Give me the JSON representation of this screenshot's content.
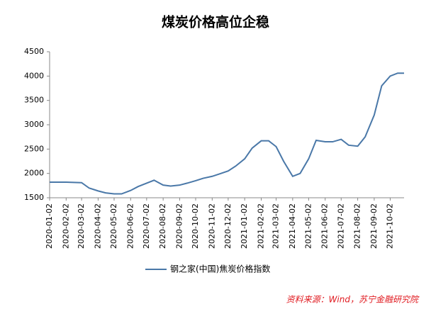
{
  "chart_data": {
    "type": "line",
    "title": "煤炭价格高位企稳",
    "x": [
      "2020-01-02",
      "2020-02-02",
      "2020-03-02",
      "2020-03-16",
      "2020-04-02",
      "2020-04-16",
      "2020-05-02",
      "2020-05-16",
      "2020-06-02",
      "2020-06-16",
      "2020-07-02",
      "2020-07-16",
      "2020-08-02",
      "2020-08-16",
      "2020-09-02",
      "2020-09-16",
      "2020-10-02",
      "2020-10-16",
      "2020-11-02",
      "2020-11-16",
      "2020-12-02",
      "2020-12-16",
      "2021-01-02",
      "2021-01-16",
      "2021-02-02",
      "2021-02-16",
      "2021-03-02",
      "2021-03-16",
      "2021-04-02",
      "2021-04-16",
      "2021-05-02",
      "2021-05-16",
      "2021-06-02",
      "2021-06-16",
      "2021-07-02",
      "2021-07-16",
      "2021-08-02",
      "2021-08-16",
      "2021-09-02",
      "2021-09-16",
      "2021-10-02",
      "2021-10-16",
      "2021-10-28"
    ],
    "series": [
      {
        "name": "钢之家(中国)焦炭价格指数",
        "color": "#4a78a8",
        "values": [
          1820,
          1820,
          1810,
          1700,
          1640,
          1600,
          1580,
          1580,
          1650,
          1730,
          1800,
          1860,
          1760,
          1740,
          1760,
          1800,
          1850,
          1900,
          1940,
          1990,
          2050,
          2150,
          2300,
          2520,
          2670,
          2670,
          2550,
          2250,
          1940,
          2000,
          2300,
          2680,
          2650,
          2650,
          2700,
          2580,
          2560,
          2750,
          3200,
          3800,
          4000,
          4060,
          4060
        ]
      }
    ],
    "xlim": [
      "2020-01-02",
      "2021-10-28"
    ],
    "xticks": [
      "2020-01-02",
      "2020-02-02",
      "2020-03-02",
      "2020-04-02",
      "2020-05-02",
      "2020-06-02",
      "2020-07-02",
      "2020-08-02",
      "2020-09-02",
      "2020-10-02",
      "2020-11-02",
      "2020-12-02",
      "2021-01-02",
      "2021-02-02",
      "2021-03-02",
      "2021-04-02",
      "2021-05-02",
      "2021-06-02",
      "2021-07-02",
      "2021-08-02",
      "2021-09-02",
      "2021-10-02"
    ],
    "ylim": [
      1500,
      4500
    ],
    "yticks": [
      1500,
      2000,
      2500,
      3000,
      3500,
      4000,
      4500
    ],
    "grid": false,
    "legend": "bottom",
    "source": "资料来源：Wind，苏宁金融研究院"
  }
}
